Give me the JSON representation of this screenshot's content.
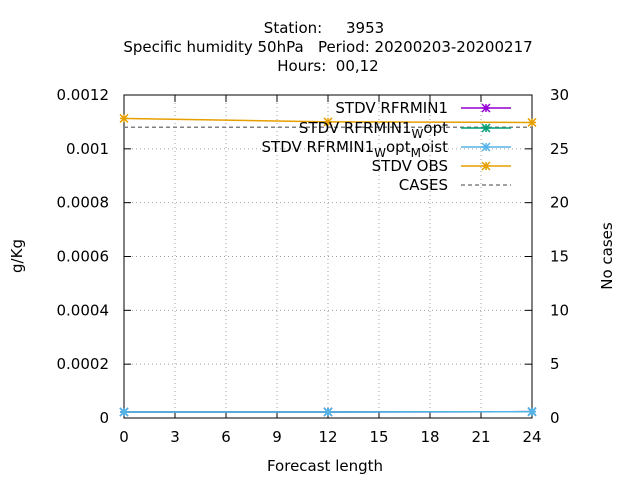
{
  "chart_data": {
    "type": "line",
    "title_lines": [
      "Station:     3953",
      "Specific humidity 50hPa   Period: 20200203-20200217",
      "Hours:  00,12"
    ],
    "xlabel": "Forecast length",
    "ylabel": "g/Kg",
    "y2label": "No cases",
    "xlim": [
      0,
      24
    ],
    "ylim": [
      0,
      0.0012
    ],
    "y2lim": [
      0,
      30
    ],
    "x_ticks": [
      "0",
      "3",
      "6",
      "9",
      "12",
      "15",
      "18",
      "21",
      "24"
    ],
    "y_ticks": [
      "0",
      "0.0002",
      "0.0004",
      "0.0006",
      "0.0008",
      "0.001",
      "0.0012"
    ],
    "y2_ticks": [
      "0",
      "5",
      "10",
      "15",
      "20",
      "25",
      "30"
    ],
    "grid": true,
    "legend_position": "top-right",
    "x": [
      0,
      12,
      24
    ],
    "series": [
      {
        "name": "STDV RFRMIN1",
        "color": "#9400d3",
        "axis": "y",
        "values": [
          2.22e-05,
          2.25e-05,
          2.35e-05
        ]
      },
      {
        "name": "STDV RFRMIN1_W_opt",
        "legend_parts": [
          "STDV RFRMIN1",
          "W",
          "opt"
        ],
        "color": "#009e73",
        "axis": "y",
        "values": [
          2.22e-05,
          2.25e-05,
          2.35e-05
        ]
      },
      {
        "name": "STDV RFRMIN1_W_opt_M_oist",
        "legend_parts": [
          "STDV RFRMIN1",
          "W",
          "opt",
          "M",
          "oist"
        ],
        "color": "#56b4e9",
        "axis": "y",
        "values": [
          2.22e-05,
          2.25e-05,
          2.35e-05
        ]
      },
      {
        "name": "STDV OBS",
        "color": "#e69f00",
        "axis": "y",
        "values": [
          0.001113,
          0.0011,
          0.001098
        ]
      },
      {
        "name": "CASES",
        "color": "#808080",
        "axis": "y2",
        "dashed": true,
        "values": [
          27,
          27,
          27
        ]
      }
    ]
  }
}
